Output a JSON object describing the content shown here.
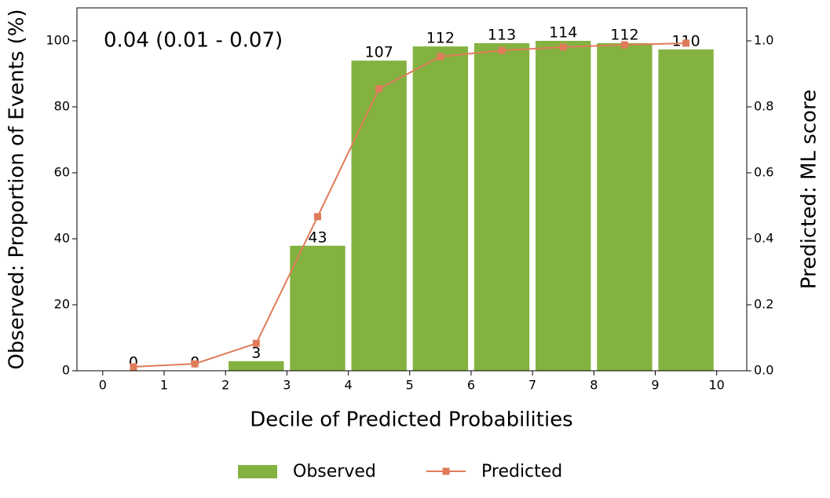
{
  "chart_data": {
    "type": "bar",
    "annotation": "0.04 (0.01 - 0.07)",
    "xlabel": "Decile of Predicted Probabilities",
    "ylabel": "Observed: Proportion of Events (%)",
    "y2label": "Predicted: ML score",
    "y2label_color": "#e07b5a",
    "xlim": [
      -0.42,
      10.49
    ],
    "xticks": [
      0,
      1,
      2,
      3,
      4,
      5,
      6,
      7,
      8,
      9,
      10
    ],
    "ylim": [
      0,
      110
    ],
    "yticks": [
      0,
      20,
      40,
      60,
      80,
      100
    ],
    "y2lim": [
      0,
      1.1
    ],
    "y2ticks": [
      {
        "value": 0,
        "label": "0.0"
      },
      0.2,
      0.4,
      0.6,
      0.8,
      {
        "value": 1,
        "label": "1.0"
      }
    ],
    "legend": "bottom",
    "series": [
      {
        "name": "Observed",
        "type": "bar",
        "color": "#84b240",
        "bar_width": 0.9,
        "x": [
          0.5,
          1.5,
          2.5,
          3.5,
          4.5,
          5.5,
          6.5,
          7.5,
          8.5,
          9.5
        ],
        "values": [
          0,
          0,
          2.9,
          37.9,
          94.0,
          98.3,
          99.3,
          100.0,
          99.3,
          97.4
        ],
        "count_labels": [
          0,
          0,
          3,
          43,
          107,
          112,
          113,
          114,
          112,
          110
        ]
      },
      {
        "name": "Predicted",
        "type": "line",
        "axis": "y2",
        "color": "#e07b5a",
        "x": [
          0.5,
          1.5,
          2.5,
          3.5,
          4.5,
          5.5,
          6.5,
          7.5,
          8.5,
          9.5
        ],
        "values": [
          0.012,
          0.021,
          0.083,
          0.467,
          0.855,
          0.952,
          0.971,
          0.981,
          0.988,
          0.993
        ]
      }
    ]
  }
}
